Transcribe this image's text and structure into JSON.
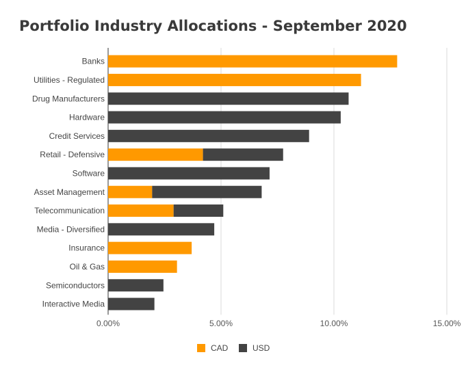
{
  "chart_data": {
    "type": "bar",
    "orientation": "horizontal",
    "stacked": true,
    "title": "Portfolio Industry Allocations - September 2020",
    "categories": [
      "Banks",
      "Utilities - Regulated",
      "Drug Manufacturers",
      "Hardware",
      "Credit Services",
      "Retail - Defensive",
      "Software",
      "Asset Management",
      "Telecommunication",
      "Media - Diversified",
      "Insurance",
      "Oil & Gas",
      "Semiconductors",
      "Interactive Media"
    ],
    "series": [
      {
        "name": "CAD",
        "color": "#ff9900",
        "values": [
          12.8,
          11.2,
          0,
          0,
          0,
          4.2,
          0,
          1.95,
          2.9,
          0,
          3.7,
          3.05,
          0,
          0
        ]
      },
      {
        "name": "USD",
        "color": "#434343",
        "values": [
          0,
          0,
          10.65,
          10.3,
          8.9,
          3.55,
          7.15,
          4.85,
          2.2,
          4.7,
          0,
          0,
          2.45,
          2.05
        ]
      }
    ],
    "xlim": [
      0,
      15
    ],
    "xticks": [
      0,
      5,
      10,
      15
    ],
    "xtick_labels": [
      "0.00%",
      "5.00%",
      "10.00%",
      "15.00%"
    ],
    "grid": true,
    "legend_position": "bottom"
  }
}
